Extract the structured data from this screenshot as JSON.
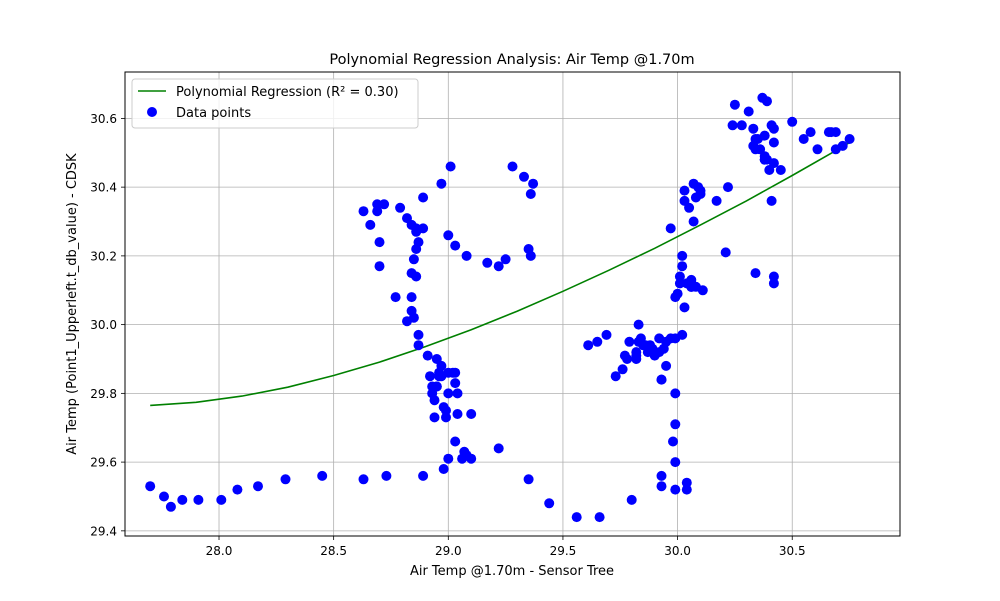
{
  "chart_data": {
    "type": "scatter",
    "title": "Polynomial Regression Analysis: Air Temp @1.70m",
    "xlabel": "Air Temp @1.70m - Sensor Tree",
    "ylabel": "Air Temp (Point1_Upperleft.t_db_value) - CDSK",
    "xlim": [
      27.59,
      30.97
    ],
    "ylim": [
      29.385,
      30.735
    ],
    "xticks": [
      28.0,
      28.5,
      29.0,
      29.5,
      30.0,
      30.5
    ],
    "yticks": [
      29.4,
      29.6,
      29.8,
      30.0,
      30.2,
      30.4,
      30.6
    ],
    "grid": true,
    "legend_position": "top-left",
    "series": [
      {
        "name": "Polynomial Regression (R² = 0.30)",
        "kind": "line",
        "color": "#008000",
        "x": [
          27.7,
          27.9,
          28.1,
          28.3,
          28.5,
          28.7,
          28.9,
          29.1,
          29.3,
          29.5,
          29.7,
          29.9,
          30.1,
          30.3,
          30.5,
          30.7,
          30.75
        ],
        "y": [
          29.765,
          29.774,
          29.792,
          29.818,
          29.852,
          29.891,
          29.936,
          29.985,
          30.039,
          30.097,
          30.158,
          30.222,
          30.29,
          30.36,
          30.434,
          30.51,
          30.53
        ]
      },
      {
        "name": "Data points",
        "kind": "scatter",
        "color": "#0000ff",
        "x": [
          27.7,
          27.76,
          27.79,
          27.84,
          27.91,
          28.01,
          28.08,
          28.17,
          28.29,
          28.45,
          28.63,
          28.73,
          28.89,
          28.98,
          29.22,
          29.35,
          29.44,
          29.56,
          29.66,
          29.8,
          29.93,
          29.93,
          29.99,
          30.04,
          30.04,
          29.0,
          29.03,
          29.06,
          29.07,
          29.08,
          29.1,
          29.1,
          28.99,
          29.04,
          29.04,
          29.03,
          29.0,
          28.99,
          28.98,
          28.97,
          28.94,
          28.96,
          28.95,
          28.93,
          28.94,
          28.97,
          28.96,
          28.92,
          28.91,
          29.0,
          29.03,
          29.02,
          28.87,
          28.87,
          28.85,
          28.84,
          28.82,
          28.84,
          28.86,
          28.77,
          28.7,
          28.7,
          28.84,
          28.85,
          28.86,
          28.87,
          28.86,
          28.84,
          28.82,
          28.79,
          28.72,
          28.69,
          28.66,
          28.63,
          28.69,
          28.86,
          28.89,
          28.89,
          28.97,
          29.01,
          29.0,
          29.03,
          29.08,
          29.17,
          29.22,
          29.25,
          29.28,
          29.33,
          29.37,
          29.36,
          29.35,
          29.36,
          29.61,
          29.65,
          29.69,
          29.73,
          29.76,
          29.78,
          29.82,
          29.83,
          29.84,
          29.85,
          29.88,
          29.9,
          29.92,
          29.94,
          29.95,
          29.97,
          29.99,
          30.02,
          29.83,
          29.93,
          29.93,
          29.95,
          29.99,
          29.99,
          29.98,
          29.99,
          29.97,
          30.03,
          30.07,
          30.1,
          30.09,
          30.1,
          30.08,
          30.07,
          30.03,
          30.05,
          30.02,
          30.02,
          30.01,
          30.01,
          29.99,
          30.0,
          30.06,
          30.05,
          30.03,
          30.06,
          30.06,
          30.04,
          30.06,
          30.06,
          30.08,
          30.11,
          30.17,
          30.22,
          30.24,
          30.25,
          30.28,
          30.31,
          30.33,
          30.34,
          30.38,
          30.39,
          30.4,
          30.42,
          30.45,
          30.41,
          30.37,
          30.39,
          30.35,
          30.33,
          30.34,
          30.36,
          30.38,
          30.38,
          30.41,
          30.38,
          30.42,
          30.42,
          30.21,
          30.34,
          30.42,
          30.42,
          30.5,
          30.55,
          30.58,
          30.61,
          30.66,
          30.67,
          30.69,
          30.69,
          30.72,
          30.75,
          29.88,
          29.92,
          29.87,
          29.82,
          29.79,
          29.77,
          29.82,
          29.86,
          29.89,
          28.95,
          28.95,
          28.93
        ],
        "y": [
          29.53,
          29.5,
          29.47,
          29.49,
          29.49,
          29.49,
          29.52,
          29.53,
          29.55,
          29.56,
          29.55,
          29.56,
          29.56,
          29.58,
          29.64,
          29.55,
          29.48,
          29.44,
          29.44,
          29.49,
          29.53,
          29.56,
          29.52,
          29.52,
          29.54,
          29.61,
          29.66,
          29.61,
          29.63,
          29.62,
          29.61,
          29.74,
          29.75,
          29.74,
          29.8,
          29.83,
          29.8,
          29.73,
          29.76,
          29.88,
          29.73,
          29.85,
          29.82,
          29.82,
          29.78,
          29.85,
          29.86,
          29.85,
          29.91,
          29.86,
          29.86,
          29.86,
          29.94,
          29.97,
          30.02,
          30.08,
          30.01,
          30.04,
          30.14,
          30.08,
          30.17,
          30.24,
          30.15,
          30.19,
          30.22,
          30.24,
          30.27,
          30.29,
          30.31,
          30.34,
          30.35,
          30.35,
          30.29,
          30.33,
          30.33,
          30.28,
          30.28,
          30.37,
          30.41,
          30.46,
          30.26,
          30.23,
          30.2,
          30.18,
          30.17,
          30.19,
          30.46,
          30.43,
          30.41,
          30.2,
          30.22,
          30.38,
          29.94,
          29.95,
          29.97,
          29.85,
          29.87,
          29.9,
          29.91,
          29.95,
          29.96,
          29.94,
          29.94,
          29.91,
          29.92,
          29.93,
          29.95,
          29.96,
          29.96,
          29.97,
          30.0,
          29.84,
          29.84,
          29.88,
          29.8,
          29.71,
          29.66,
          29.6,
          30.28,
          30.39,
          30.41,
          30.39,
          30.4,
          30.38,
          30.37,
          30.3,
          30.36,
          30.34,
          30.2,
          30.17,
          30.14,
          30.12,
          30.08,
          30.09,
          30.11,
          30.12,
          30.05,
          30.13,
          30.12,
          30.12,
          30.11,
          30.11,
          30.11,
          30.1,
          30.36,
          30.4,
          30.58,
          30.64,
          30.58,
          30.62,
          30.57,
          30.54,
          30.48,
          30.48,
          30.45,
          30.47,
          30.45,
          30.36,
          30.66,
          30.65,
          30.54,
          30.52,
          30.51,
          30.51,
          30.49,
          30.48,
          30.58,
          30.55,
          30.53,
          30.57,
          30.21,
          30.15,
          30.12,
          30.14,
          30.59,
          30.54,
          30.56,
          30.51,
          30.56,
          30.56,
          30.56,
          30.51,
          30.52,
          30.54,
          29.93,
          29.96,
          29.92,
          29.92,
          29.95,
          29.91,
          29.9,
          29.94,
          29.93,
          29.9,
          29.82,
          29.8
        ]
      }
    ]
  }
}
